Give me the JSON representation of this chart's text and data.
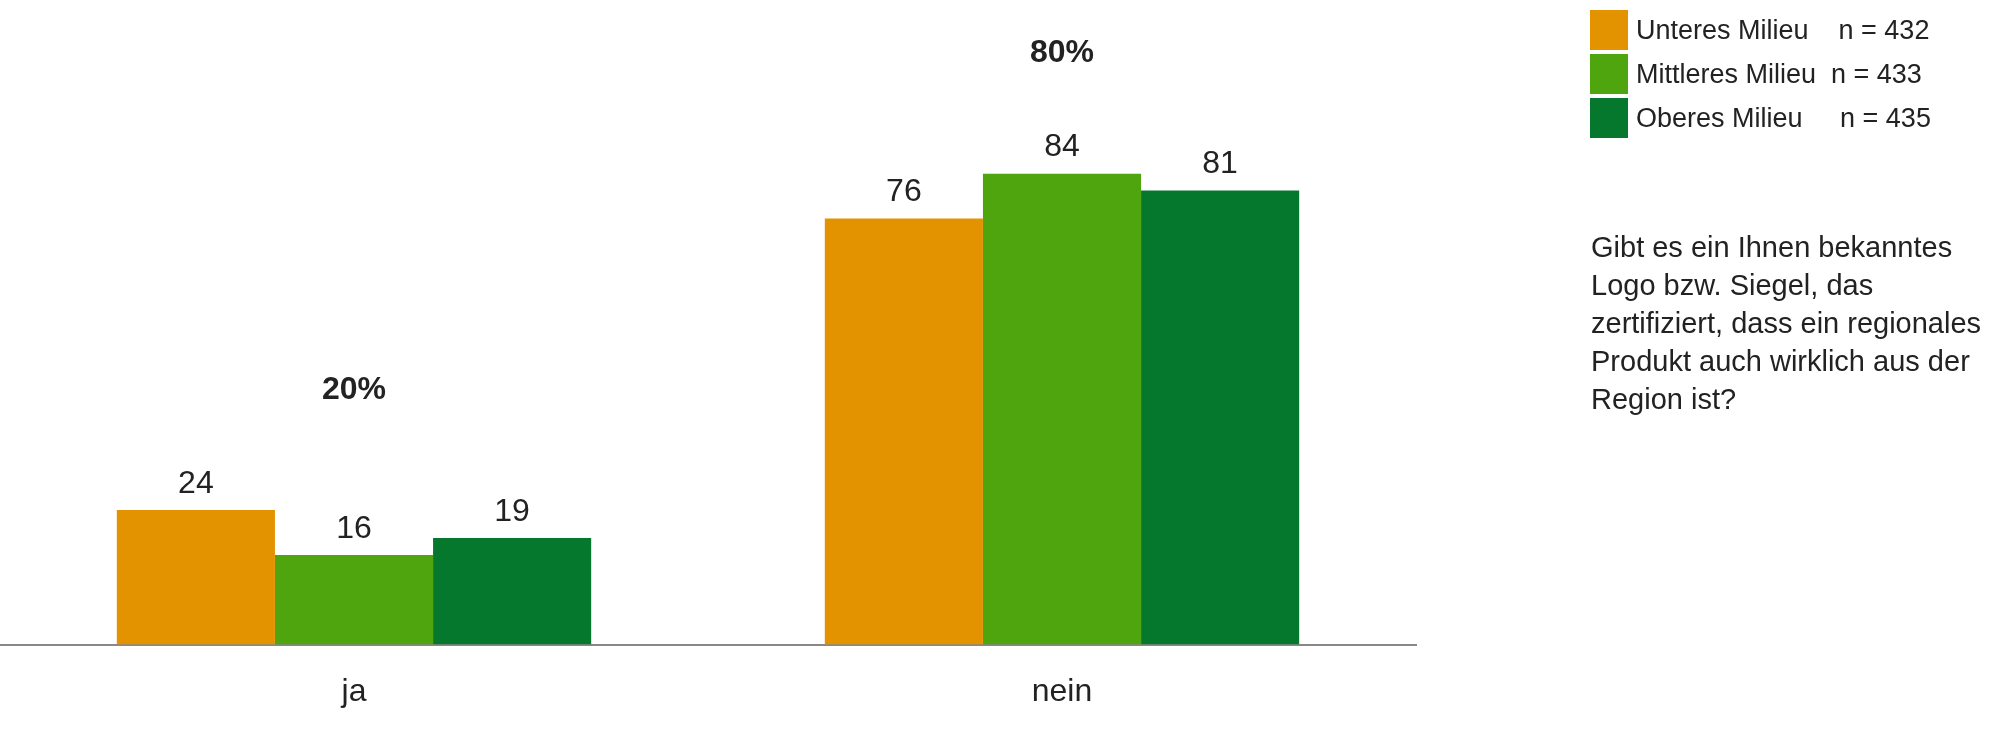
{
  "chart_data": {
    "type": "bar",
    "categories": [
      "ja",
      "nein"
    ],
    "series": [
      {
        "name": "Unteres Milieu    n = 432",
        "color": "#e39300",
        "values": [
          24,
          76
        ]
      },
      {
        "name": "Mittleres Milieu  n = 433",
        "color": "#4fa50e",
        "values": [
          16,
          84
        ]
      },
      {
        "name": "Oberes Milieu     n = 435",
        "color": "#06782d",
        "values": [
          19,
          81
        ]
      }
    ],
    "tick_labels": "x",
    "data_labels": true,
    "legend": "top right",
    "annotations": [
      "20%",
      "80%",
      "Gibt es ein Ihnen bekanntes Logo bzw. Siegel, das zertifiziert, dass ein regionales Produkt auch wirklich aus der Region ist?"
    ]
  }
}
